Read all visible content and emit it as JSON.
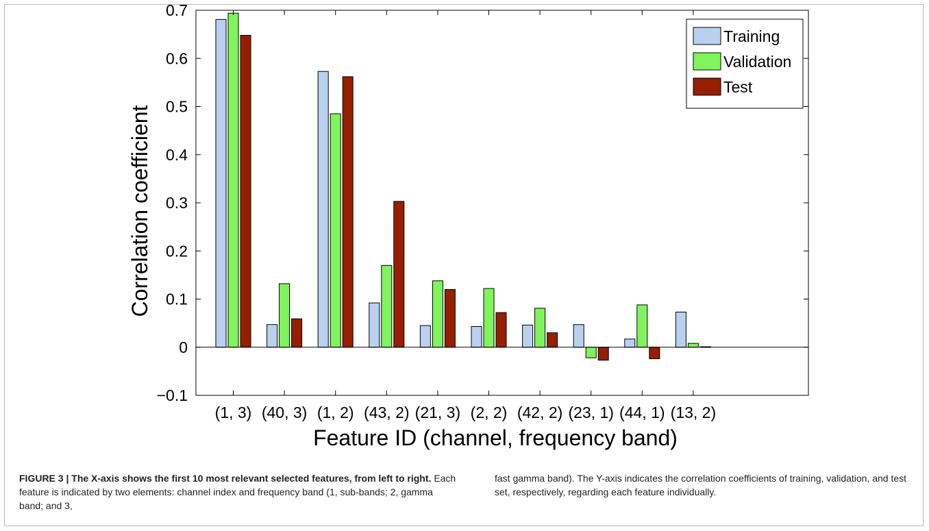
{
  "chart_data": {
    "type": "bar",
    "categories": [
      "(1, 3)",
      "(40, 3)",
      "(1, 2)",
      "(43, 2)",
      "(21, 3)",
      "(2, 2)",
      "(42, 2)",
      "(23, 1)",
      "(44, 1)",
      "(13, 2)"
    ],
    "series": [
      {
        "name": "Training",
        "color": "#b9d1ef",
        "values": [
          0.681,
          0.047,
          0.573,
          0.092,
          0.045,
          0.043,
          0.046,
          0.047,
          0.017,
          0.073
        ]
      },
      {
        "name": "Validation",
        "color": "#80f45c",
        "values": [
          0.694,
          0.132,
          0.485,
          0.17,
          0.138,
          0.122,
          0.081,
          -0.022,
          0.088,
          0.008
        ]
      },
      {
        "name": "Test",
        "color": "#951f00",
        "values": [
          0.648,
          0.059,
          0.562,
          0.303,
          0.12,
          0.072,
          0.03,
          -0.027,
          -0.024,
          0.001
        ]
      }
    ],
    "xlabel": "Feature ID (channel, frequency band)",
    "ylabel": "Correlation coefficient",
    "ylim": [
      -0.1,
      0.7
    ],
    "yticks": [
      "−0.1",
      "0",
      "0.1",
      "0.2",
      "0.3",
      "0.4",
      "0.5",
      "0.6",
      "0.7"
    ],
    "grid": false,
    "legend_position": "top-right"
  },
  "caption": {
    "figure_label": "FIGURE 3 |",
    "bold_text": "The X-axis shows the first 10 most relevant selected features, from left to right.",
    "left_text": "Each feature is indicated by two elements: channel index and frequency band (1, sub-bands; 2, gamma band; and 3,",
    "right_text": "fast gamma band). The Y-axis indicates the correlation coefficients of training, validation, and test set, respectively, regarding each feature individually."
  }
}
